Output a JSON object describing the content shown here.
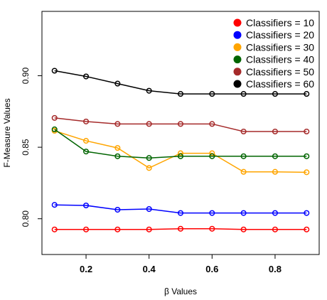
{
  "chart_data": {
    "type": "line",
    "xlabel": "β Values",
    "ylabel": "F-Measure Values",
    "x": [
      0.1,
      0.2,
      0.3,
      0.4,
      0.5,
      0.6,
      0.7,
      0.8,
      0.9
    ],
    "xlim": [
      0.06,
      0.94
    ],
    "ylim": [
      0.775,
      0.945
    ],
    "xticks": [
      0.2,
      0.4,
      0.6,
      0.8
    ],
    "xtick_labels": [
      "0.2",
      "0.4",
      "0.6",
      "0.8"
    ],
    "yticks": [
      0.8,
      0.85,
      0.9
    ],
    "ytick_labels": [
      "0.80",
      "0.85",
      "0.90"
    ],
    "grid": false,
    "legend_position": "top-right",
    "series": [
      {
        "name": "Classifiers = 10",
        "color": "#ff0000",
        "values": [
          0.7925,
          0.7925,
          0.7925,
          0.7925,
          0.793,
          0.793,
          0.7925,
          0.7925,
          0.7925
        ]
      },
      {
        "name": "Classifiers = 20",
        "color": "#0000ff",
        "values": [
          0.8097,
          0.8093,
          0.8063,
          0.8068,
          0.804,
          0.804,
          0.804,
          0.804,
          0.804
        ]
      },
      {
        "name": "Classifiers = 30",
        "color": "#ffa500",
        "values": [
          0.8615,
          0.8545,
          0.8495,
          0.8355,
          0.8458,
          0.8458,
          0.8328,
          0.8328,
          0.8325
        ]
      },
      {
        "name": "Classifiers = 40",
        "color": "#006400",
        "values": [
          0.8625,
          0.847,
          0.8437,
          0.8425,
          0.8437,
          0.8437,
          0.8437,
          0.8437,
          0.8437
        ]
      },
      {
        "name": "Classifiers = 50",
        "color": "#a52a2a",
        "values": [
          0.8705,
          0.868,
          0.8663,
          0.8663,
          0.8663,
          0.8663,
          0.861,
          0.861,
          0.861
        ]
      },
      {
        "name": "Classifiers = 60",
        "color": "#000000",
        "values": [
          0.9035,
          0.8995,
          0.8945,
          0.8895,
          0.8873,
          0.8873,
          0.8873,
          0.8873,
          0.8873
        ]
      }
    ]
  }
}
